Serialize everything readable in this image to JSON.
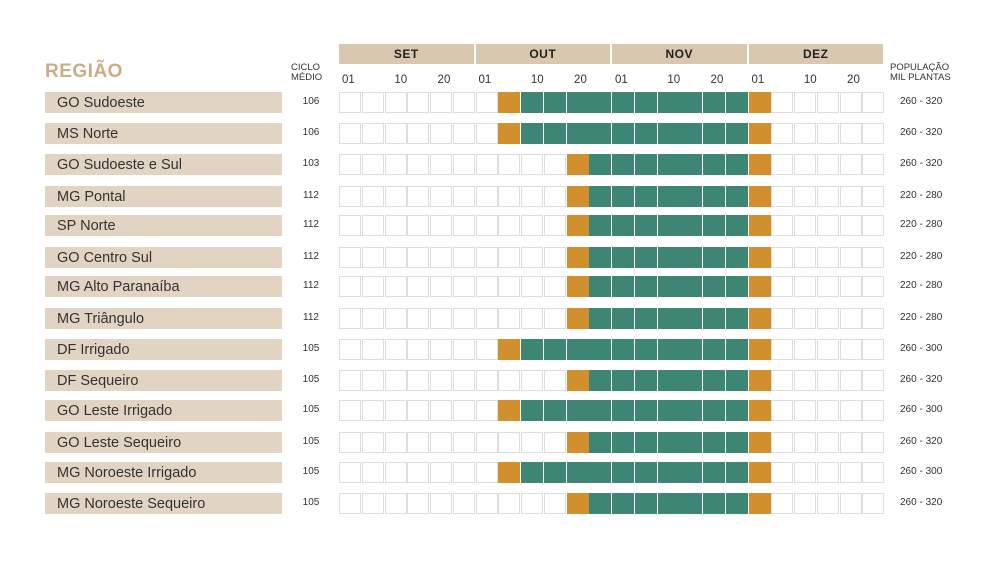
{
  "header": {
    "regiao_title": "REGIÃO",
    "ciclo_line1": "CICLO",
    "ciclo_line2": "MÉDIO",
    "pop_line1": "POPULAÇÃO",
    "pop_line2": "MIL PLANTAS"
  },
  "months": [
    "SET",
    "OUT",
    "NOV",
    "DEZ"
  ],
  "ticks": [
    "01",
    "10",
    "20"
  ],
  "colors": {
    "planting": "#d18f2e",
    "growth": "#3e8674",
    "empty_cell": "#ffffff",
    "region_bar": "#e1d4c2",
    "month_bar": "#d9c7b0",
    "title": "#ccac85"
  },
  "chart_data": {
    "type": "table",
    "title": "",
    "legend": "none",
    "columns": {
      "months": [
        "SET",
        "OUT",
        "NOV",
        "DEZ"
      ],
      "cells_per_month": 6,
      "tick_labels": [
        "01",
        "10",
        "20"
      ]
    },
    "rows": [
      {
        "region": "GO Sudoeste",
        "ciclo": "106",
        "populacao": "260 - 320",
        "start_cell": 7,
        "end_cell": 18
      },
      {
        "region": "MS Norte",
        "ciclo": "106",
        "populacao": "260 - 320",
        "start_cell": 7,
        "end_cell": 18
      },
      {
        "region": "GO Sudoeste e Sul",
        "ciclo": "103",
        "populacao": "260 - 320",
        "start_cell": 10,
        "end_cell": 18
      },
      {
        "region": "MG Pontal",
        "ciclo": "112",
        "populacao": "220 - 280",
        "start_cell": 10,
        "end_cell": 18
      },
      {
        "region": "SP Norte",
        "ciclo": "112",
        "populacao": "220 - 280",
        "start_cell": 10,
        "end_cell": 18
      },
      {
        "region": "GO Centro Sul",
        "ciclo": "112",
        "populacao": "220 - 280",
        "start_cell": 10,
        "end_cell": 18
      },
      {
        "region": "MG Alto Paranaíba",
        "ciclo": "112",
        "populacao": "220 - 280",
        "start_cell": 10,
        "end_cell": 18
      },
      {
        "region": "MG Triângulo",
        "ciclo": "112",
        "populacao": "220 - 280",
        "start_cell": 10,
        "end_cell": 18
      },
      {
        "region": "DF Irrigado",
        "ciclo": "105",
        "populacao": "260 - 300",
        "start_cell": 7,
        "end_cell": 18
      },
      {
        "region": "DF Sequeiro",
        "ciclo": "105",
        "populacao": "260 - 320",
        "start_cell": 10,
        "end_cell": 18
      },
      {
        "region": "GO Leste Irrigado",
        "ciclo": "105",
        "populacao": "260 - 300",
        "start_cell": 7,
        "end_cell": 18
      },
      {
        "region": "GO Leste Sequeiro",
        "ciclo": "105",
        "populacao": "260 - 320",
        "start_cell": 10,
        "end_cell": 18
      },
      {
        "region": "MG Noroeste Irrigado",
        "ciclo": "105",
        "populacao": "260 - 300",
        "start_cell": 7,
        "end_cell": 18
      },
      {
        "region": "MG Noroeste Sequeiro",
        "ciclo": "105",
        "populacao": "260 - 320",
        "start_cell": 10,
        "end_cell": 18
      }
    ]
  }
}
